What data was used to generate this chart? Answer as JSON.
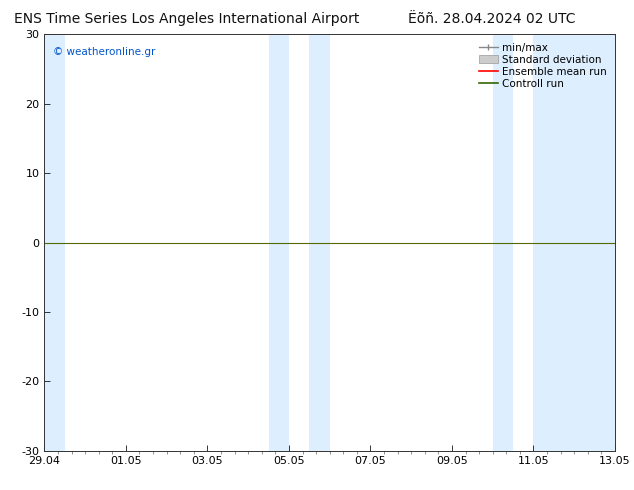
{
  "title_left": "ENS Time Series Los Angeles International Airport",
  "title_right": "Ëõñ. 28.04.2024 02 UTC",
  "ylim": [
    -30,
    30
  ],
  "yticks": [
    -30,
    -20,
    -10,
    0,
    10,
    20,
    30
  ],
  "xtick_labels": [
    "29.04",
    "01.05",
    "03.05",
    "05.05",
    "07.05",
    "09.05",
    "11.05",
    "13.05"
  ],
  "xtick_positions": [
    0,
    2,
    4,
    6,
    8,
    10,
    12,
    14
  ],
  "xlim": [
    0,
    14
  ],
  "shade_color": "#ddeeff",
  "shade_regions": [
    [
      0,
      0.5
    ],
    [
      5.5,
      6.0
    ],
    [
      6.5,
      7.0
    ],
    [
      11.0,
      11.5
    ],
    [
      12.0,
      14.0
    ]
  ],
  "background_color": "#ffffff",
  "zero_line_color": "#556b00",
  "legend_entries": [
    "min/max",
    "Standard deviation",
    "Ensemble mean run",
    "Controll run"
  ],
  "legend_line_colors": [
    "#888888",
    "#cccccc",
    "#ff0000",
    "#336600"
  ],
  "watermark": "© weatheronline.gr",
  "watermark_color": "#0055cc",
  "title_fontsize": 10,
  "tick_fontsize": 8,
  "legend_fontsize": 7.5
}
